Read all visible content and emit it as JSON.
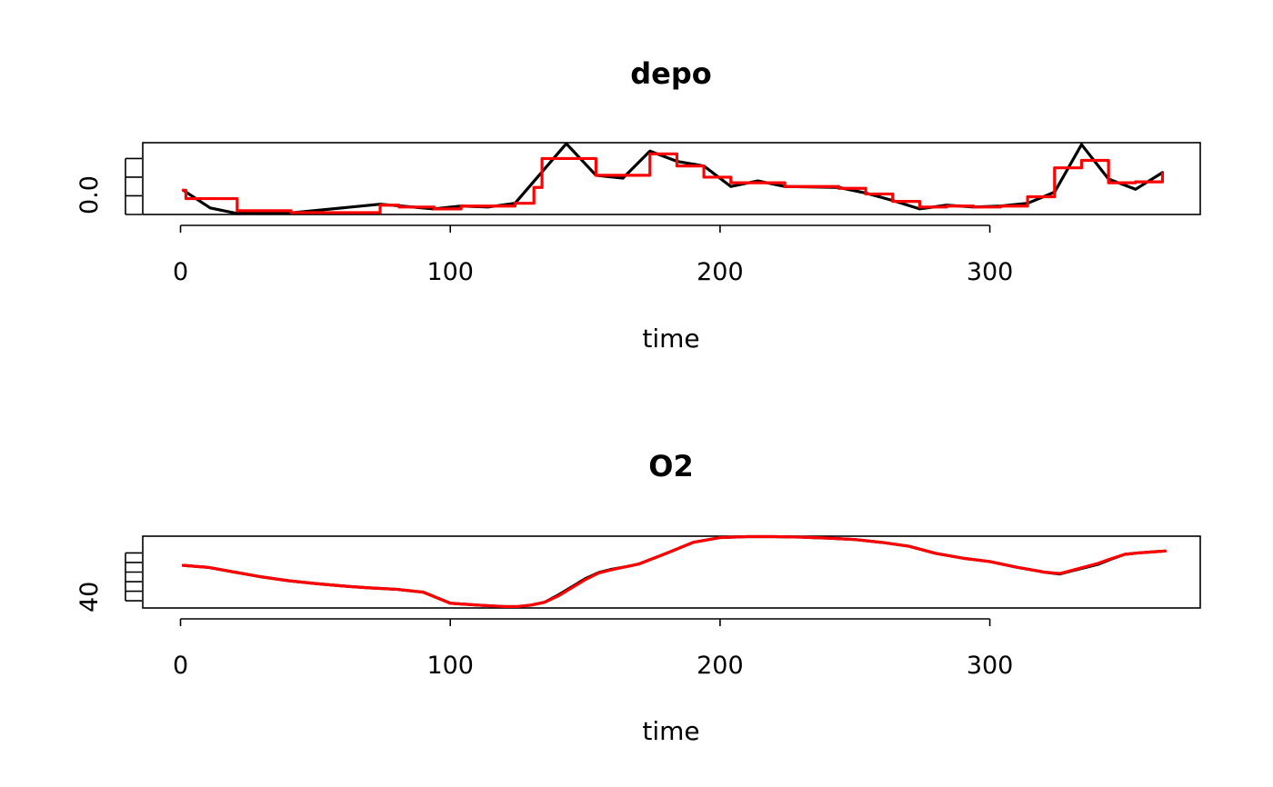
{
  "chart_data": [
    {
      "type": "line",
      "title": "depo",
      "xlabel": "time",
      "ylabel": "",
      "x_ticks": [
        "0",
        "100",
        "200",
        "300"
      ],
      "y_tick_label": "0.0",
      "xlim": [
        -14,
        378
      ],
      "ylim": [
        0,
        0.77
      ],
      "y_ticks": [
        0,
        0.2,
        0.4,
        0.6
      ],
      "grid": false,
      "legend": "none",
      "series": [
        {
          "color": "#000000",
          "style": "polyline",
          "x": [
            1,
            11,
            21,
            42,
            74,
            94,
            104,
            114,
            124,
            143,
            154,
            164,
            174,
            184,
            194,
            204,
            214,
            224,
            244,
            254,
            264,
            274,
            284,
            294,
            304,
            314,
            324,
            334,
            344,
            354,
            364
          ],
          "y": [
            0.26,
            0.07,
            0.01,
            0.02,
            0.11,
            0.06,
            0.09,
            0.08,
            0.12,
            0.76,
            0.42,
            0.39,
            0.68,
            0.57,
            0.52,
            0.3,
            0.36,
            0.3,
            0.29,
            0.23,
            0.15,
            0.06,
            0.1,
            0.08,
            0.09,
            0.12,
            0.24,
            0.75,
            0.38,
            0.27,
            0.45
          ]
        },
        {
          "color": "#ff0000",
          "style": "step",
          "x": [
            1,
            2,
            11,
            21,
            41,
            74,
            81,
            94,
            104,
            114,
            124,
            131,
            134,
            143,
            144,
            154,
            164,
            174,
            184,
            194,
            204,
            214,
            224,
            244,
            254,
            264,
            274,
            284,
            294,
            304,
            314,
            324,
            334,
            344,
            354,
            364
          ],
          "y": [
            0.26,
            0.17,
            0.17,
            0.04,
            0.02,
            0.1,
            0.08,
            0.06,
            0.09,
            0.09,
            0.12,
            0.29,
            0.6,
            0.6,
            0.6,
            0.42,
            0.42,
            0.65,
            0.52,
            0.4,
            0.34,
            0.34,
            0.3,
            0.28,
            0.22,
            0.14,
            0.08,
            0.09,
            0.08,
            0.09,
            0.19,
            0.5,
            0.58,
            0.34,
            0.35,
            0.44
          ]
        }
      ]
    },
    {
      "type": "line",
      "title": "O2",
      "xlabel": "time",
      "ylabel": "",
      "x_ticks": [
        "0",
        "100",
        "200",
        "300"
      ],
      "y_tick_label": "40",
      "xlim": [
        -14,
        378
      ],
      "ylim": [
        38.25,
        45.75
      ],
      "y_ticks": [
        39,
        40,
        41,
        42,
        43,
        44
      ],
      "grid": false,
      "legend": "none",
      "series": [
        {
          "color": "#000000",
          "style": "smooth",
          "x": [
            1,
            10,
            20,
            30,
            40,
            50,
            60,
            70,
            80,
            90,
            100,
            110,
            120,
            125,
            130,
            135,
            140,
            145,
            150,
            155,
            160,
            165,
            170,
            180,
            190,
            200,
            210,
            220,
            230,
            240,
            250,
            260,
            270,
            280,
            290,
            300,
            310,
            320,
            326,
            330,
            340,
            345,
            350,
            355,
            360,
            365
          ],
          "y": [
            42.7,
            42.5,
            42.0,
            41.5,
            41.1,
            40.8,
            40.55,
            40.35,
            40.2,
            39.9,
            38.75,
            38.55,
            38.4,
            38.4,
            38.55,
            38.85,
            39.6,
            40.45,
            41.3,
            41.95,
            42.3,
            42.55,
            42.85,
            43.95,
            45.1,
            45.6,
            45.7,
            45.7,
            45.65,
            45.55,
            45.4,
            45.1,
            44.7,
            43.95,
            43.45,
            43.1,
            42.5,
            42.0,
            41.8,
            42.1,
            42.8,
            43.35,
            43.85,
            44.0,
            44.1,
            44.2
          ]
        },
        {
          "color": "#ff0000",
          "style": "smooth",
          "x": [
            1,
            10,
            20,
            30,
            40,
            50,
            60,
            70,
            80,
            90,
            100,
            110,
            120,
            125,
            130,
            135,
            140,
            145,
            150,
            155,
            160,
            165,
            170,
            180,
            190,
            200,
            210,
            220,
            230,
            240,
            250,
            260,
            270,
            280,
            290,
            300,
            310,
            320,
            326,
            330,
            340,
            345,
            350,
            355,
            360,
            365
          ],
          "y": [
            42.7,
            42.5,
            42.0,
            41.5,
            41.1,
            40.8,
            40.55,
            40.35,
            40.2,
            39.9,
            38.75,
            38.55,
            38.4,
            38.4,
            38.55,
            38.85,
            39.5,
            40.35,
            41.2,
            41.9,
            42.25,
            42.55,
            42.85,
            43.95,
            45.1,
            45.6,
            45.7,
            45.7,
            45.65,
            45.55,
            45.4,
            45.1,
            44.7,
            43.95,
            43.45,
            43.1,
            42.5,
            42.0,
            41.85,
            42.15,
            42.9,
            43.4,
            43.85,
            44.0,
            44.1,
            44.2
          ]
        }
      ]
    }
  ]
}
